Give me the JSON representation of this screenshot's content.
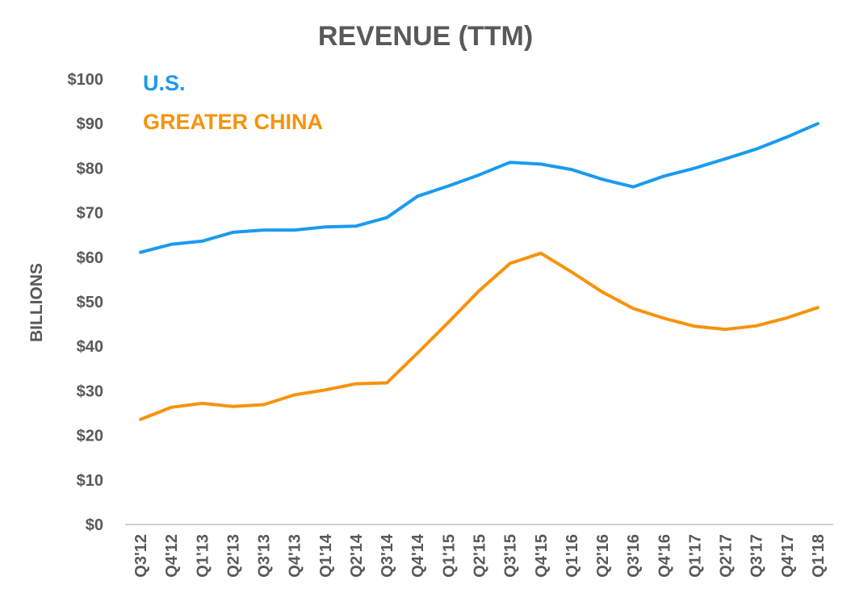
{
  "chart_data": {
    "type": "line",
    "title": "REVENUE (TTM)",
    "xlabel": "",
    "ylabel": "BILLIONS",
    "ylim": [
      0,
      100
    ],
    "yticks": [
      "$0",
      "$10",
      "$20",
      "$30",
      "$40",
      "$50",
      "$60",
      "$70",
      "$80",
      "$90",
      "$100"
    ],
    "categories": [
      "Q3'12",
      "Q4'12",
      "Q1'13",
      "Q2'13",
      "Q3'13",
      "Q4'13",
      "Q1'14",
      "Q2'14",
      "Q3'14",
      "Q4'14",
      "Q1'15",
      "Q2'15",
      "Q3'15",
      "Q4'15",
      "Q1'16",
      "Q2'16",
      "Q3'16",
      "Q4'16",
      "Q1'17",
      "Q2'17",
      "Q3'17",
      "Q4'17",
      "Q1'18"
    ],
    "series": [
      {
        "name": "U.S.",
        "color": "#1a9bf0",
        "values": [
          61.1,
          62.9,
          63.6,
          65.6,
          66.1,
          66.1,
          66.8,
          67.0,
          68.9,
          73.7,
          76.0,
          78.5,
          81.3,
          80.9,
          79.7,
          77.5,
          75.8,
          78.2,
          80.0,
          82.1,
          84.3,
          87.0,
          90.0
        ]
      },
      {
        "name": "GREATER CHINA",
        "color": "#f7930a",
        "values": [
          23.6,
          26.3,
          27.2,
          26.5,
          26.9,
          29.1,
          30.2,
          31.6,
          31.8,
          38.5,
          45.4,
          52.5,
          58.6,
          60.9,
          56.7,
          52.2,
          48.5,
          46.3,
          44.5,
          43.8,
          44.6,
          46.4,
          48.7
        ]
      }
    ],
    "grid": false,
    "legend": "top-left"
  }
}
